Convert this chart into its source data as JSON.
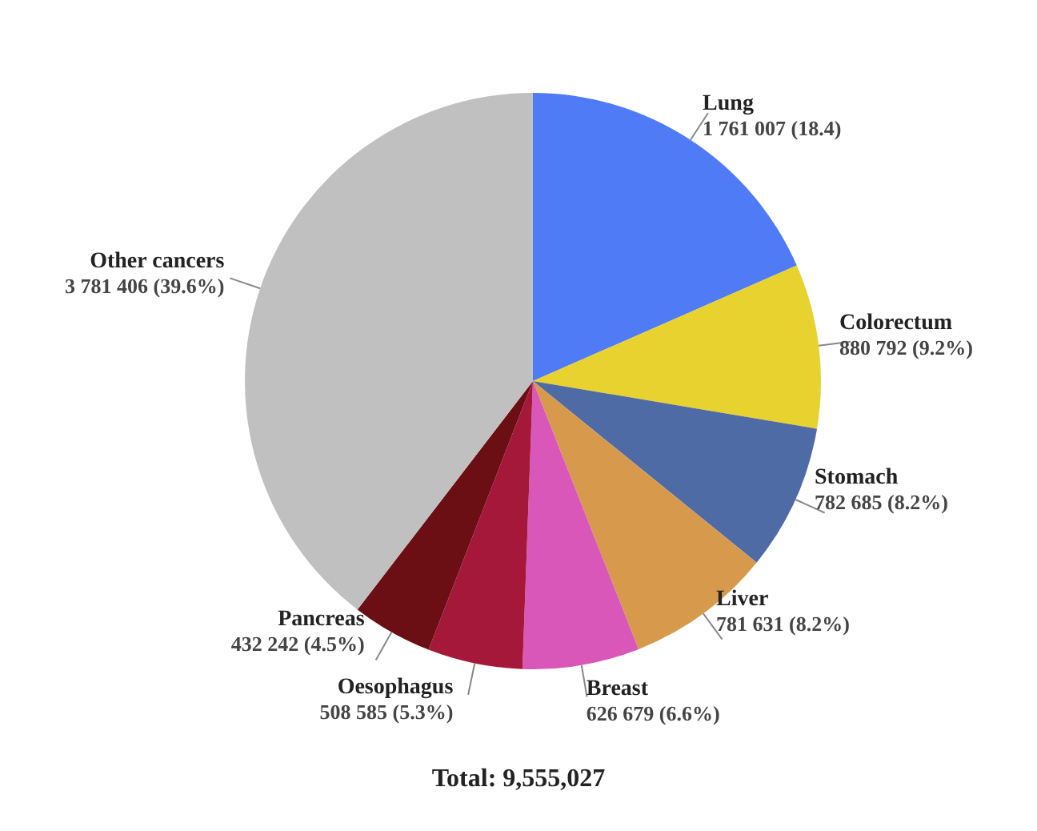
{
  "chart_data": {
    "type": "pie",
    "categories": [
      "Lung",
      "Colorectum",
      "Stomach",
      "Liver",
      "Breast",
      "Oesophagus",
      "Pancreas",
      "Other cancers"
    ],
    "values": [
      1761007,
      880792,
      782685,
      781631,
      626679,
      508585,
      432242,
      3781406
    ],
    "value_labels": [
      "1 761 007 (18.4)",
      "880 792 (9.2%)",
      "782 685 (8.2%)",
      "781 631 (8.2%)",
      "626 679 (6.6%)",
      "508 585 (5.3%)",
      "432 242 (4.5%)",
      "3 781 406 (39.6%)"
    ],
    "colors": [
      "#4f7bf7",
      "#e8d22f",
      "#4f6ba6",
      "#d79a4c",
      "#d957b8",
      "#a6183a",
      "#6b0f14",
      "#c0c0c0"
    ],
    "annotations": [
      "Total: 9,555,027"
    ],
    "legend": false
  }
}
